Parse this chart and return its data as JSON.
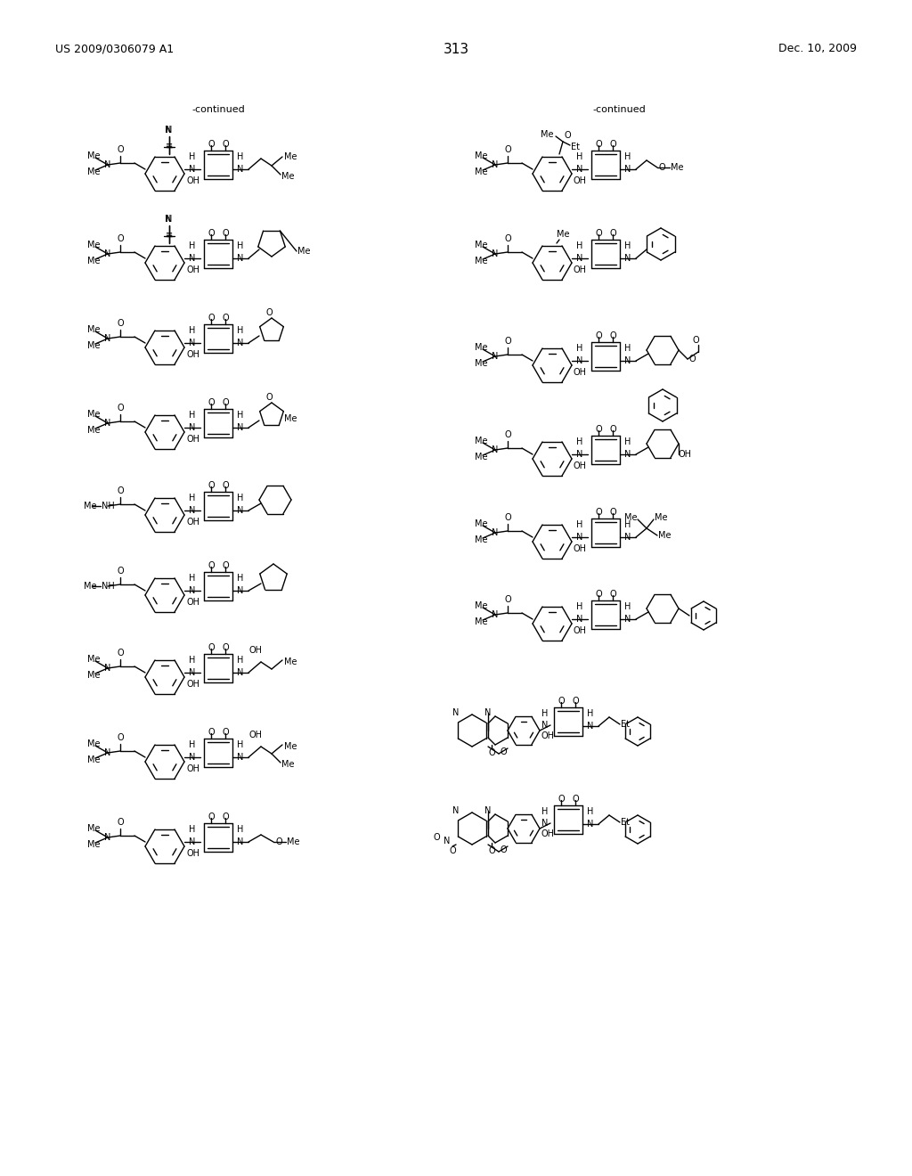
{
  "page_number": "313",
  "left_header": "US 2009/0306079 A1",
  "right_header": "Dec. 10, 2009",
  "background_color": "#ffffff",
  "text_color": "#000000",
  "continued_left": "-continued",
  "continued_right": "-continued"
}
